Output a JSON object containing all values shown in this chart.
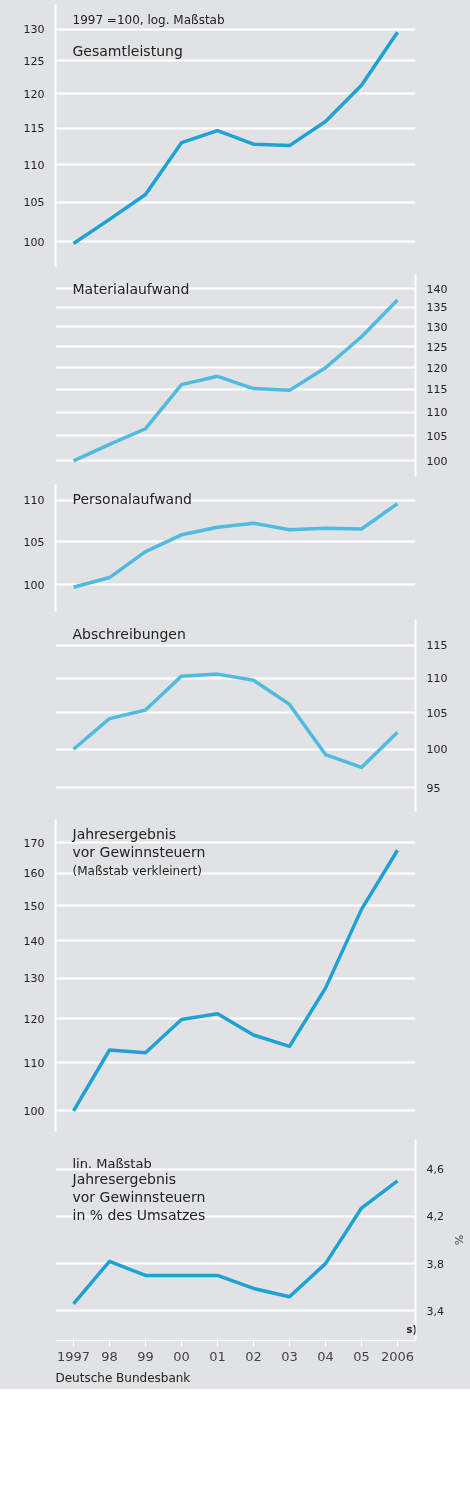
{
  "chart_data": [
    {
      "type": "line",
      "title": "Gesamtleistung",
      "annotations": [
        "1997 =100, log. Maßstab"
      ],
      "categories": [
        "1997",
        "98",
        "99",
        "00",
        "01",
        "02",
        "03",
        "04",
        "05",
        "2006"
      ],
      "series": [
        {
          "color": "#1ea2d6",
          "values": [
            99.8,
            102.8,
            106,
            113,
            114.7,
            112.8,
            112.6,
            116,
            121.3,
            129.5
          ]
        }
      ],
      "ylim": [
        97,
        134
      ],
      "yticks": [
        100,
        105,
        110,
        115,
        120,
        125,
        130
      ],
      "log": "y",
      "grid": "y",
      "tick_labels": "y",
      "line_style": "solid"
    },
    {
      "type": "line",
      "title": "Materialaufwand",
      "categories": [
        "1997",
        "98",
        "99",
        "00",
        "01",
        "02",
        "03",
        "04",
        "05",
        "2006"
      ],
      "series": [
        {
          "color": "#4fbbe0",
          "axis": "y2",
          "values": [
            100,
            103.3,
            106.5,
            116.1,
            118,
            115.2,
            114.8,
            120,
            127.5,
            137
          ]
        }
      ],
      "y2lim": [
        97,
        144
      ],
      "y2ticks": [
        100,
        105,
        110,
        115,
        120,
        125,
        130,
        135,
        140
      ],
      "log": "y2",
      "grid": "y",
      "tick_labels": "y",
      "line_style": "solid"
    },
    {
      "type": "line",
      "title": "Personalaufwand",
      "categories": [
        "1997",
        "98",
        "99",
        "00",
        "01",
        "02",
        "03",
        "04",
        "05",
        "2006"
      ],
      "series": [
        {
          "color": "#4fbbe0",
          "values": [
            99.7,
            100.8,
            103.8,
            105.8,
            106.7,
            107.2,
            106.4,
            106.6,
            106.5,
            109.6
          ]
        }
      ],
      "ylim": [
        97,
        112
      ],
      "yticks": [
        100,
        105,
        110
      ],
      "log": "y",
      "grid": "y",
      "tick_labels": "y",
      "line_style": "solid"
    },
    {
      "type": "line",
      "title": "Abschreibungen",
      "categories": [
        "1997",
        "98",
        "99",
        "00",
        "01",
        "02",
        "03",
        "04",
        "05",
        "2006"
      ],
      "series": [
        {
          "color": "#4fbbe0",
          "axis": "y2",
          "values": [
            100,
            104.2,
            105.4,
            110.3,
            110.6,
            109.7,
            106.2,
            99.3,
            97.6,
            102.3
          ]
        }
      ],
      "y2lim": [
        92,
        119
      ],
      "y2ticks": [
        95,
        100,
        105,
        110,
        115
      ],
      "log": "y2",
      "grid": "y",
      "tick_labels": "y",
      "line_style": "solid"
    },
    {
      "type": "line",
      "title": "Jahresergebnis\nvor Gewinnsteuern",
      "subtitle": "(Maßstab verkleinert)",
      "categories": [
        "1997",
        "98",
        "99",
        "00",
        "01",
        "02",
        "03",
        "04",
        "05",
        "2006"
      ],
      "series": [
        {
          "color": "#1ea2d6",
          "values": [
            100,
            112.8,
            112.2,
            119.8,
            121.2,
            116.2,
            113.6,
            127.5,
            149,
            167.5
          ]
        }
      ],
      "ylim": [
        96,
        178
      ],
      "yticks": [
        100,
        110,
        120,
        130,
        140,
        150,
        160,
        170
      ],
      "log": "y",
      "grid": "y",
      "tick_labels": "y",
      "line_style": "solid"
    },
    {
      "type": "line",
      "title": "Jahresergebnis\nvor Gewinnsteuern\nin % des Umsatzes",
      "y2label": "%",
      "annotations": [
        "lin. Maßstab",
        "s)",
        "Deutsche Bundesbank"
      ],
      "categories": [
        "1997",
        "98",
        "99",
        "00",
        "01",
        "02",
        "03",
        "04",
        "05",
        "2006"
      ],
      "series": [
        {
          "color": "#1ea2d6",
          "axis": "y2",
          "values": [
            3.46,
            3.82,
            3.7,
            3.7,
            3.7,
            3.59,
            3.52,
            3.8,
            4.27,
            4.5
          ]
        }
      ],
      "y2lim": [
        3.15,
        4.85
      ],
      "y2ticks": [
        {
          "value": 3.4,
          "label": "3,4"
        },
        {
          "value": 3.8,
          "label": "3,8"
        },
        {
          "value": 4.2,
          "label": "4,2"
        },
        {
          "value": 4.6,
          "label": "4,6"
        }
      ],
      "grid": "y",
      "line_style": "solid"
    }
  ]
}
